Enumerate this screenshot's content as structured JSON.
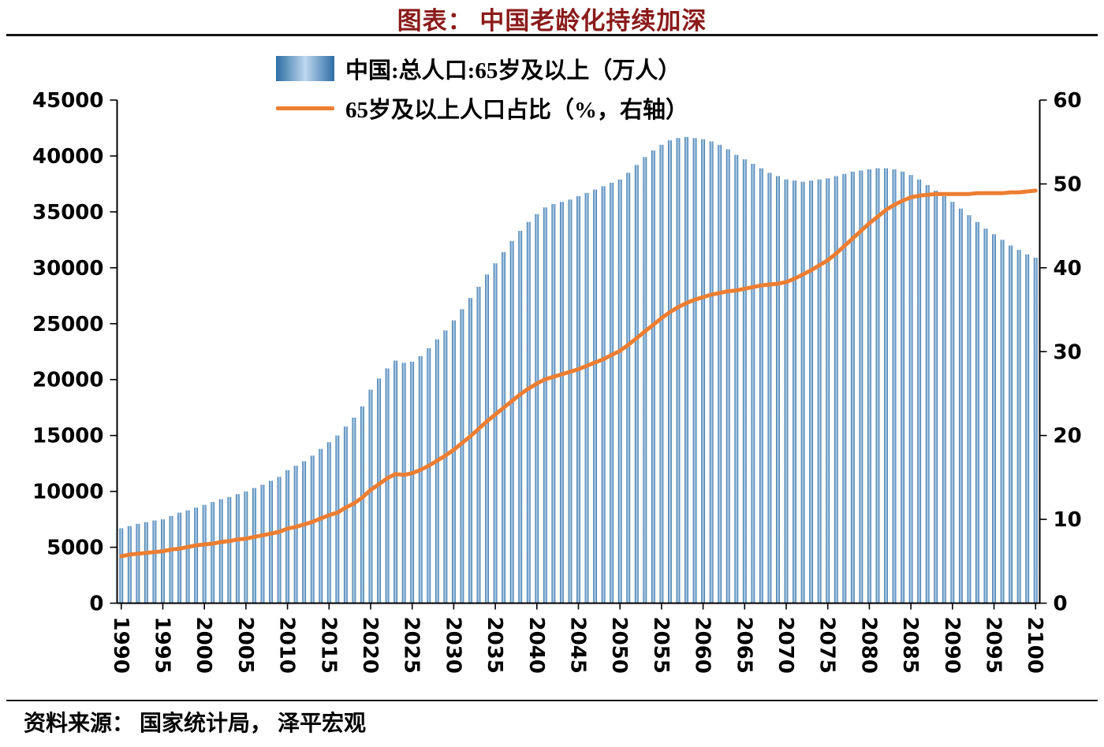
{
  "page": {
    "title": "图表：  中国老龄化持续加深",
    "source": "资料来源：  国家统计局，  泽平宏观"
  },
  "legend": {
    "items": [
      {
        "label": "中国:总人口:65岁及以上（万人）",
        "swatch": "bar-gradient-swatch"
      },
      {
        "label": "65岁及以上人口占比（%，右轴）",
        "swatch": "orange-line-swatch"
      }
    ]
  },
  "colors": {
    "title": "#8B1A1A",
    "text": "#000000",
    "axis": "#000000",
    "bar_edge": "#2E6DA4",
    "bar_center": "#BDD7EE",
    "line": "#ED7D31"
  },
  "chart_data": {
    "type": "bar",
    "title": "图表：中国老龄化持续加深",
    "legend_position": "top",
    "grid": false,
    "year_start": 1990,
    "year_end": 2100,
    "x_tick_years": [
      1990,
      1995,
      2000,
      2005,
      2010,
      2015,
      2020,
      2025,
      2030,
      2035,
      2040,
      2045,
      2050,
      2055,
      2060,
      2065,
      2070,
      2075,
      2080,
      2085,
      2090,
      2095,
      2100
    ],
    "left_axis": {
      "min": 0,
      "max": 45000,
      "ticks": [
        0,
        5000,
        10000,
        15000,
        20000,
        25000,
        30000,
        35000,
        40000,
        45000
      ]
    },
    "right_axis": {
      "min": 0,
      "max": 60,
      "ticks": [
        0,
        10,
        20,
        30,
        40,
        50,
        60
      ]
    },
    "series": [
      {
        "name": "中国:总人口:65岁及以上（万人）",
        "type": "bar",
        "axis": "left",
        "values": [
          6700,
          6900,
          7100,
          7250,
          7400,
          7500,
          7800,
          8100,
          8300,
          8550,
          8800,
          9050,
          9300,
          9500,
          9750,
          10000,
          10300,
          10600,
          10950,
          11300,
          11900,
          12300,
          12700,
          13200,
          13800,
          14400,
          15000,
          15800,
          16600,
          17600,
          19100,
          20100,
          21000,
          21700,
          21500,
          21600,
          22100,
          22800,
          23600,
          24400,
          25300,
          26300,
          27300,
          28300,
          29400,
          30400,
          31400,
          32400,
          33300,
          34100,
          34800,
          35400,
          35700,
          35900,
          36100,
          36400,
          36700,
          37000,
          37300,
          37600,
          37900,
          38500,
          39200,
          39900,
          40500,
          41000,
          41400,
          41600,
          41700,
          41600,
          41500,
          41300,
          41000,
          40600,
          40100,
          39700,
          39300,
          38900,
          38500,
          38200,
          37900,
          37800,
          37700,
          37800,
          37900,
          38000,
          38200,
          38400,
          38600,
          38700,
          38800,
          38900,
          38900,
          38800,
          38600,
          38300,
          37900,
          37400,
          36900,
          36400,
          35900,
          35300,
          34700,
          34100,
          33500,
          33000,
          32500,
          32000,
          31600,
          31200,
          30900
        ]
      },
      {
        "name": "65岁及以上人口占比（%，右轴）",
        "type": "line",
        "axis": "right",
        "values": [
          5.6,
          5.8,
          5.9,
          6.0,
          6.1,
          6.2,
          6.4,
          6.5,
          6.7,
          6.9,
          7.0,
          7.1,
          7.3,
          7.4,
          7.6,
          7.7,
          7.9,
          8.1,
          8.3,
          8.5,
          8.9,
          9.1,
          9.4,
          9.7,
          10.1,
          10.5,
          10.8,
          11.4,
          11.9,
          12.6,
          13.5,
          14.2,
          14.9,
          15.4,
          15.3,
          15.5,
          15.9,
          16.4,
          17.0,
          17.6,
          18.3,
          19.1,
          19.9,
          20.8,
          21.7,
          22.5,
          23.3,
          24.1,
          24.9,
          25.6,
          26.2,
          26.7,
          27.0,
          27.3,
          27.6,
          27.9,
          28.3,
          28.7,
          29.1,
          29.6,
          30.1,
          30.8,
          31.6,
          32.4,
          33.2,
          34.0,
          34.7,
          35.3,
          35.8,
          36.2,
          36.5,
          36.8,
          37.0,
          37.2,
          37.3,
          37.5,
          37.7,
          37.9,
          38.0,
          38.1,
          38.3,
          38.7,
          39.2,
          39.7,
          40.3,
          40.9,
          41.7,
          42.6,
          43.5,
          44.4,
          45.3,
          46.1,
          46.9,
          47.5,
          48.0,
          48.4,
          48.6,
          48.7,
          48.8,
          48.8,
          48.8,
          48.8,
          48.8,
          48.9,
          48.9,
          48.9,
          48.9,
          49.0,
          49.0,
          49.1,
          49.2
        ]
      }
    ]
  }
}
